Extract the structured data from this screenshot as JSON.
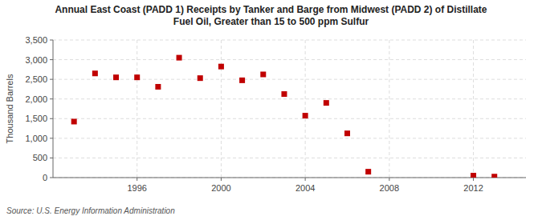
{
  "chart_data": {
    "type": "scatter",
    "title": "Annual East Coast (PADD 1) Receipts by Tanker and Barge from Midwest (PADD 2) of Distillate\nFuel Oil, Greater than 15 to 500 ppm Sulfur",
    "y_label": "Thousand Barrels",
    "annotations": [
      "Source: U.S. Energy Information Administration"
    ],
    "x": [
      1993,
      1994,
      1995,
      1996,
      1997,
      1998,
      1999,
      2000,
      2001,
      2002,
      2003,
      2004,
      2005,
      2006,
      2007,
      2012,
      2013
    ],
    "values": [
      1425,
      2650,
      2550,
      2550,
      2310,
      3050,
      2530,
      2825,
      2475,
      2625,
      2125,
      1575,
      1900,
      1125,
      150,
      50,
      25
    ],
    "color": "#c00000",
    "marker": "square",
    "grid": true,
    "xlim": [
      1992,
      2014.5
    ],
    "xticks": [
      1996,
      2000,
      2004,
      2008,
      2012
    ],
    "ylim": [
      0,
      3500
    ],
    "yticks": [
      0,
      500,
      {
        "value": 1000,
        "label": "1,000"
      },
      {
        "value": 1500,
        "label": "1,500"
      },
      {
        "value": 2000,
        "label": "2,000"
      },
      {
        "value": 2500,
        "label": "2,500"
      },
      {
        "value": 3000,
        "label": "3,000"
      },
      {
        "value": 3500,
        "label": "3,500"
      }
    ]
  }
}
